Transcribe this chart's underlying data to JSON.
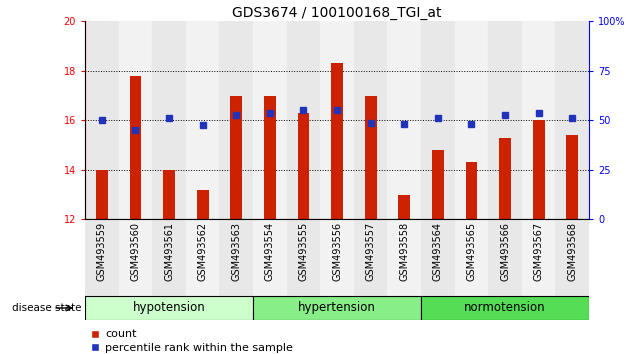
{
  "title": "GDS3674 / 100100168_TGI_at",
  "categories": [
    "GSM493559",
    "GSM493560",
    "GSM493561",
    "GSM493562",
    "GSM493563",
    "GSM493554",
    "GSM493555",
    "GSM493556",
    "GSM493557",
    "GSM493558",
    "GSM493564",
    "GSM493565",
    "GSM493566",
    "GSM493567",
    "GSM493568"
  ],
  "bar_values": [
    14.0,
    17.8,
    14.0,
    13.2,
    17.0,
    17.0,
    16.3,
    18.3,
    17.0,
    13.0,
    14.8,
    14.3,
    15.3,
    16.0,
    15.4
  ],
  "blue_values": [
    16.0,
    15.6,
    16.1,
    15.8,
    16.2,
    16.3,
    16.4,
    16.4,
    15.9,
    15.85,
    16.1,
    15.85,
    16.2,
    16.3,
    16.1
  ],
  "ylim_left": [
    12,
    20
  ],
  "ylim_right": [
    0,
    100
  ],
  "yticks_left": [
    12,
    14,
    16,
    18,
    20
  ],
  "yticks_right": [
    0,
    25,
    50,
    75,
    100
  ],
  "bar_color": "#cc2200",
  "blue_color": "#2233bb",
  "col_bg_even": "#e8e8e8",
  "col_bg_odd": "#f2f2f2",
  "groups": [
    {
      "label": "hypotension",
      "start": 0,
      "end": 5,
      "color": "#ccffcc"
    },
    {
      "label": "hypertension",
      "start": 5,
      "end": 10,
      "color": "#88ee88"
    },
    {
      "label": "normotension",
      "start": 10,
      "end": 15,
      "color": "#55dd55"
    }
  ],
  "disease_state_label": "disease state",
  "legend_count_label": "count",
  "legend_percentile_label": "percentile rank within the sample",
  "background_color": "#ffffff",
  "title_fontsize": 10,
  "tick_fontsize": 7,
  "group_fontsize": 8.5,
  "legend_fontsize": 8
}
